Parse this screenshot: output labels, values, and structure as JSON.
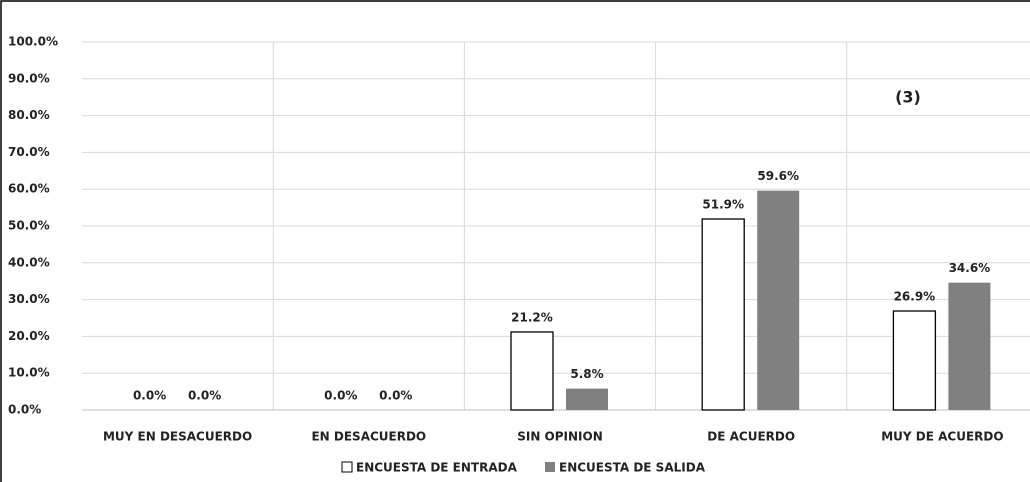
{
  "chart_data": {
    "type": "bar",
    "annotation": "(3)",
    "categories": [
      "MUY EN DESACUERDO",
      "EN DESACUERDO",
      "SIN OPINION",
      "DE ACUERDO",
      "MUY DE ACUERDO"
    ],
    "series": [
      {
        "name": "ENCUESTA DE ENTRADA",
        "color": "#ffffff",
        "values": [
          0,
          0,
          21.2,
          51.9,
          26.9
        ],
        "value_labels": [
          "0.0%",
          "0.0%",
          "21.2%",
          "51.9%",
          "26.9%"
        ]
      },
      {
        "name": "ENCUESTA DE SALIDA",
        "color": "#808080",
        "values": [
          0,
          0,
          5.8,
          59.6,
          34.6
        ],
        "value_labels": [
          "0.0%",
          "0.0%",
          "5.8%",
          "59.6%",
          "34.6%"
        ]
      }
    ],
    "ylim": [
      0,
      100
    ],
    "yticks": [
      {
        "value": 0,
        "label": "0.0%"
      },
      {
        "value": 10,
        "label": "10.0%"
      },
      {
        "value": 20,
        "label": "20.0%"
      },
      {
        "value": 30,
        "label": "30.0%"
      },
      {
        "value": 40,
        "label": "40.0%"
      },
      {
        "value": 50,
        "label": "50.0%"
      },
      {
        "value": 60,
        "label": "60.0%"
      },
      {
        "value": 70,
        "label": "70.0%"
      },
      {
        "value": 80,
        "label": "80.0%"
      },
      {
        "value": 90,
        "label": "90.0%"
      },
      {
        "value": 100,
        "label": "100.0%"
      }
    ],
    "grid": true,
    "legend": "bottom"
  }
}
